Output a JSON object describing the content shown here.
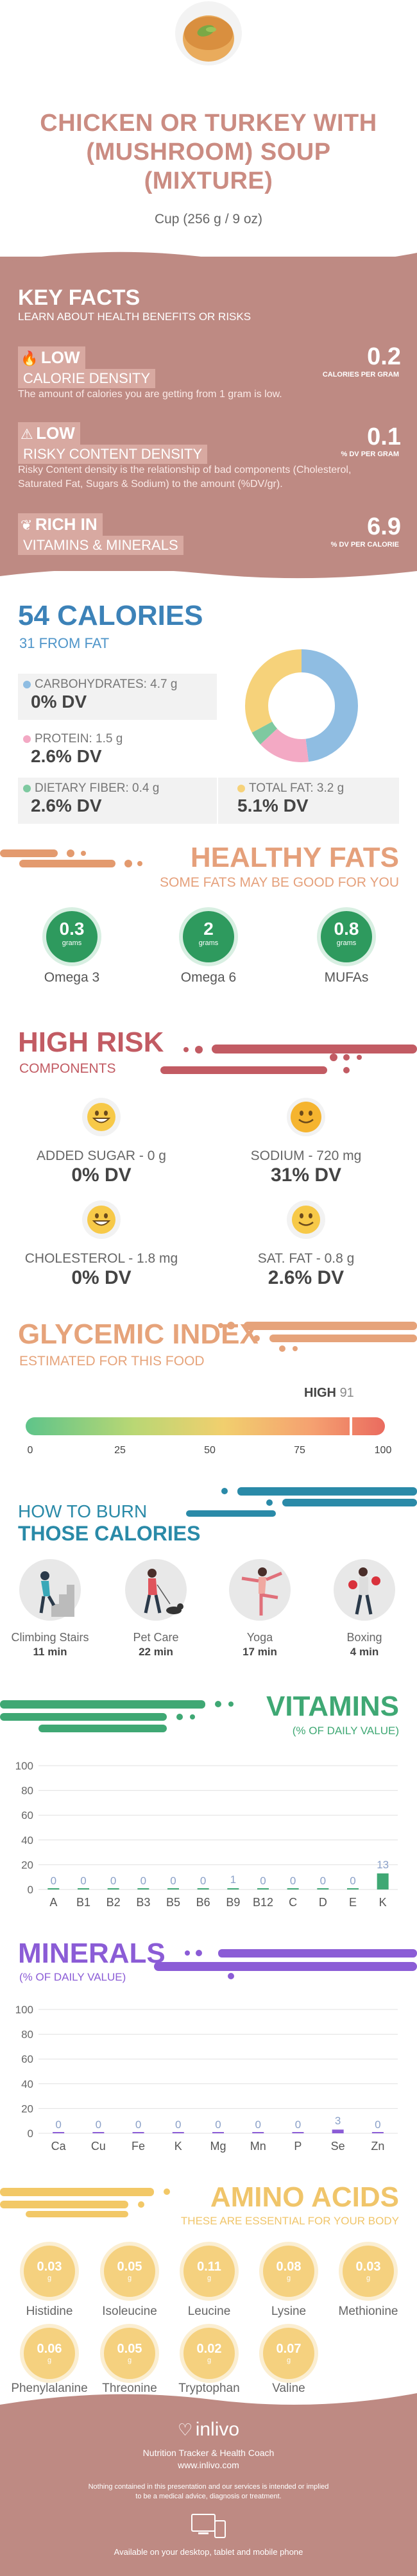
{
  "header": {
    "title_lines": [
      "CHICKEN OR TURKEY WITH",
      "(MUSHROOM) SOUP",
      "(MIXTURE)"
    ],
    "serving": "Cup (256 g / 9 oz)"
  },
  "key_facts": {
    "heading": "KEY FACTS",
    "subheading": "LEARN ABOUT HEALTH BENEFITS OR RISKS",
    "items": [
      {
        "badge": "LOW",
        "tag": "CALORIE DENSITY",
        "value": "0.2",
        "unit": "CALORIES PER GRAM",
        "desc": "The amount of calories you are getting from 1 gram is low."
      },
      {
        "badge": "LOW",
        "tag": "RISKY CONTENT DENSITY",
        "value": "0.1",
        "unit": "% DV PER GRAM",
        "desc": "Risky Content density is the relationship of bad components (Cholesterol, Saturated Fat, Sugars & Sodium) to the amount (%DV/gr)."
      },
      {
        "badge": "RICH  IN",
        "tag": "VITAMINS & MINERALS",
        "value": "6.9",
        "unit": "% DV PER CALORIE",
        "desc": ""
      }
    ]
  },
  "calories": {
    "heading": "54 CALORIES",
    "from_fat": "31 FROM FAT",
    "carbs_label": "CARBOHYDRATES: 4.7 g",
    "carbs_dv": "0% DV",
    "protein_label": "PROTEIN: 1.5 g",
    "protein_dv": "2.6% DV",
    "fiber_label": "DIETARY FIBER: 0.4 g",
    "fiber_dv": "2.6% DV",
    "fat_label": "TOTAL FAT: 3.2 g",
    "fat_dv": "5.1% DV",
    "colors": {
      "carbs": "#8fbde2",
      "protein": "#f3a9c4",
      "fiber": "#7ec9a0",
      "fat": "#f6d27a"
    }
  },
  "healthy_fats": {
    "heading": "HEALTHY FATS",
    "subheading": "SOME FATS MAY BE GOOD FOR YOU",
    "items": [
      {
        "value": "0.3",
        "unit": "grams",
        "label": "Omega 3"
      },
      {
        "value": "2",
        "unit": "grams",
        "label": "Omega 6"
      },
      {
        "value": "0.8",
        "unit": "grams",
        "label": "MUFAs"
      }
    ]
  },
  "high_risk": {
    "heading": "HIGH RISK",
    "subheading": "COMPONENTS",
    "items": [
      {
        "label": "ADDED SUGAR - 0 g",
        "dv": "0% DV",
        "icon": "grin-face-icon"
      },
      {
        "label": "SODIUM - 720 mg",
        "dv": "31% DV",
        "icon": "smile-face-icon"
      },
      {
        "label": "CHOLESTEROL - 1.8 mg",
        "dv": "0% DV",
        "icon": "grin-face-icon"
      },
      {
        "label": "SAT. FAT - 0.8 g",
        "dv": "2.6% DV",
        "icon": "smile-face-icon"
      }
    ]
  },
  "glycemic": {
    "heading": "GLYCEMIC INDEX",
    "subheading": "ESTIMATED FOR THIS FOOD",
    "level": "HIGH",
    "value": "91",
    "ticks": [
      "0",
      "25",
      "50",
      "75",
      "100"
    ]
  },
  "burn": {
    "heading_1": "HOW TO BURN",
    "heading_2": "THOSE CALORIES",
    "items": [
      {
        "label": "Climbing Stairs",
        "min": "11 min",
        "icon": "stairs-icon"
      },
      {
        "label": "Pet Care",
        "min": "22 min",
        "icon": "dog-walk-icon"
      },
      {
        "label": "Yoga",
        "min": "17 min",
        "icon": "yoga-icon"
      },
      {
        "label": "Boxing",
        "min": "4 min",
        "icon": "boxing-icon"
      }
    ]
  },
  "vitamins": {
    "heading": "VITAMINS",
    "subheading": "(% OF DAILY VALUE)"
  },
  "minerals": {
    "heading": "MINERALS",
    "subheading": "(% OF DAILY VALUE)"
  },
  "chart_data": [
    {
      "type": "bar",
      "categories": [
        "A",
        "B1",
        "B2",
        "B3",
        "B5",
        "B6",
        "B9",
        "B12",
        "C",
        "D",
        "E",
        "K"
      ],
      "values": [
        0,
        0,
        0,
        0,
        0,
        0,
        1,
        0,
        0,
        0,
        0,
        13
      ],
      "ylim": [
        0,
        100
      ],
      "yticks": [
        "0",
        "20",
        "40",
        "60",
        "80",
        "100"
      ],
      "color": "#3fa874"
    },
    {
      "type": "bar",
      "categories": [
        "Ca",
        "Cu",
        "Fe",
        "K",
        "Mg",
        "Mn",
        "P",
        "Se",
        "Zn"
      ],
      "values": [
        0,
        0,
        0,
        0,
        0,
        0,
        0,
        3,
        0
      ],
      "ylim": [
        0,
        100
      ],
      "yticks": [
        "0",
        "20",
        "40",
        "60",
        "80",
        "100"
      ],
      "color": "#8b5cd6"
    }
  ],
  "amino": {
    "heading": "AMINO ACIDS",
    "subheading": "THESE ARE ESSENTIAL FOR YOUR BODY",
    "items": [
      {
        "value": "0.03",
        "unit": "g",
        "label": "Histidine"
      },
      {
        "value": "0.05",
        "unit": "g",
        "label": "Isoleucine"
      },
      {
        "value": "0.11",
        "unit": "g",
        "label": "Leucine"
      },
      {
        "value": "0.08",
        "unit": "g",
        "label": "Lysine"
      },
      {
        "value": "0.03",
        "unit": "g",
        "label": "Methionine"
      },
      {
        "value": "0.06",
        "unit": "g",
        "label": "Phenylalanine"
      },
      {
        "value": "0.05",
        "unit": "g",
        "label": "Threonine"
      },
      {
        "value": "0.02",
        "unit": "g",
        "label": "Tryptophan"
      },
      {
        "value": "0.07",
        "unit": "g",
        "label": "Valine"
      }
    ]
  },
  "footer": {
    "brand": "inlivo",
    "tagline": "Nutrition Tracker & Health Coach",
    "url": "www.inlivo.com",
    "disclaimer_1": "Nothing contained in this presentation and our services is intended or implied",
    "disclaimer_2": "to be a medical advice, diagnosis or treatment.",
    "available": "Available on your desktop, tablet and mobile phone"
  }
}
